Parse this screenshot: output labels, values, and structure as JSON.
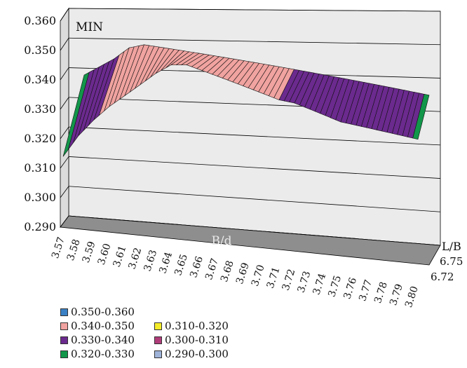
{
  "chart_data": {
    "type": "surface-3d",
    "title": "MIN",
    "xlabel": "B/d",
    "zlabel": "L/B",
    "y_ticks": [
      "0.360",
      "0.350",
      "0.340",
      "0.330",
      "0.320",
      "0.310",
      "0.300",
      "0.290"
    ],
    "ylim": [
      0.29,
      0.36
    ],
    "x_categories": [
      "3.57",
      "3.58",
      "3.59",
      "3.60",
      "3.61",
      "3.62",
      "3.63",
      "3.64",
      "3.65",
      "3.66",
      "3.67",
      "3.68",
      "3.69",
      "3.70",
      "3.71",
      "3.72",
      "3.73",
      "3.74",
      "3.75",
      "3.76",
      "3.77",
      "3.78",
      "3.79",
      "3.80"
    ],
    "z_categories": [
      "6.72",
      "6.75"
    ],
    "series": [
      {
        "name": "6.75",
        "values": [
          0.343,
          0.346,
          0.349,
          0.353,
          0.354,
          0.353,
          0.352,
          0.351,
          0.35,
          0.349,
          0.348,
          0.347,
          0.346,
          0.345,
          0.344,
          0.343,
          0.342,
          0.341,
          0.34,
          0.339,
          0.338,
          0.337,
          0.336,
          0.335
        ]
      },
      {
        "name": "6.72",
        "values": [
          0.314,
          0.322,
          0.328,
          0.333,
          0.337,
          0.341,
          0.345,
          0.348,
          0.348,
          0.346,
          0.344,
          0.342,
          0.34,
          0.338,
          0.336,
          0.335,
          0.333,
          0.331,
          0.329,
          0.328,
          0.327,
          0.326,
          0.325,
          0.324
        ]
      }
    ],
    "legend_position": "bottom-left",
    "legend": [
      {
        "label": "0.350-0.360",
        "color": "#3a80c4"
      },
      {
        "label": "0.340-0.350",
        "color": "#f0a3a0"
      },
      {
        "label": "0.330-0.340",
        "color": "#6b2a8e"
      },
      {
        "label": "0.320-0.330",
        "color": "#12964a"
      },
      {
        "label": "0.310-0.320",
        "color": "#f5ec2a"
      },
      {
        "label": "0.300-0.310",
        "color": "#b03c7a"
      },
      {
        "label": "0.290-0.300",
        "color": "#9fb3d8"
      }
    ]
  },
  "colors": {
    "wall": "#ebebeb",
    "floor": "#8e8e8e",
    "gridline": "#000000",
    "mesh": "#111111"
  }
}
